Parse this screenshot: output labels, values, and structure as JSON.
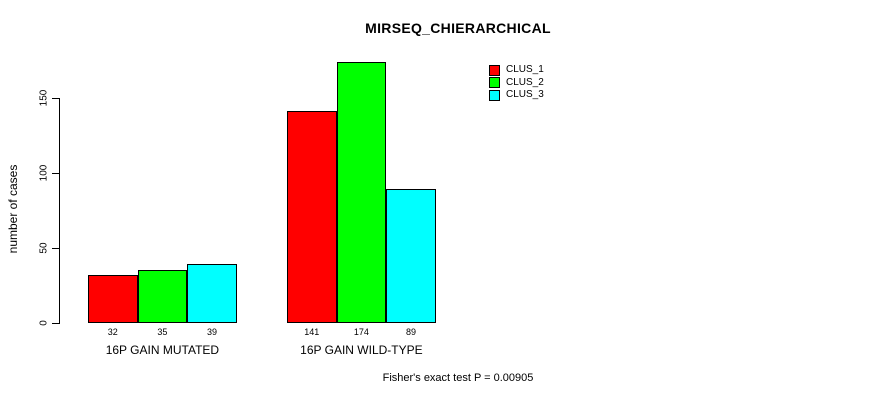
{
  "chart_data": {
    "type": "bar",
    "title": "MIRSEQ_CHIERARCHICAL",
    "ylabel": "number of cases",
    "xlabel": "",
    "categories": [
      "16P GAIN MUTATED",
      "16P GAIN WILD-TYPE"
    ],
    "series": [
      {
        "name": "CLUS_1",
        "color": "#ff0000",
        "values": [
          32,
          141
        ]
      },
      {
        "name": "CLUS_2",
        "color": "#00ff00",
        "values": [
          35,
          174
        ]
      },
      {
        "name": "CLUS_3",
        "color": "#00ffff",
        "values": [
          39,
          89
        ]
      }
    ],
    "bar_value_labels": [
      [
        32,
        35,
        39
      ],
      [
        141,
        174,
        89
      ]
    ],
    "yticks": [
      0,
      50,
      100,
      150
    ],
    "ylim": [
      0,
      174
    ],
    "grid": false,
    "legend_position": "top-right",
    "annotation": "Fisher's exact test P = 0.00905"
  },
  "colors": {
    "background": "#ffffff",
    "text": "#000000",
    "axis": "#000000",
    "clus_1": "#ff0000",
    "clus_2": "#00ff00",
    "clus_3": "#00ffff"
  }
}
